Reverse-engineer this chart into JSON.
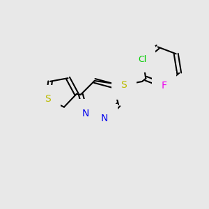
{
  "background_color": "#e8e8e8",
  "bond_color": "#000000",
  "bond_lw": 1.5,
  "figsize": [
    3.0,
    3.0
  ],
  "dpi": 100,
  "xlim": [
    0,
    300
  ],
  "ylim": [
    0,
    300
  ]
}
